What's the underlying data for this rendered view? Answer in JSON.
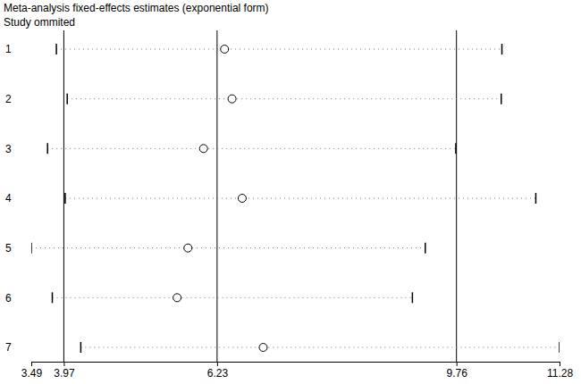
{
  "chart_data": {
    "type": "forest",
    "orientation": "horizontal",
    "title": "Meta-analysis fixed-effects estimates (exponential form)",
    "subtitle": "Study ommited",
    "categories": [
      "1",
      "2",
      "3",
      "4",
      "5",
      "6",
      "7"
    ],
    "values": [
      6.34,
      6.45,
      6.03,
      6.6,
      5.8,
      5.64,
      6.91
    ],
    "ci_lower": [
      3.86,
      4.02,
      3.73,
      3.99,
      3.49,
      3.8,
      4.22
    ],
    "ci_upper": [
      10.43,
      10.42,
      9.75,
      10.93,
      9.3,
      9.11,
      11.28
    ],
    "reference_lines": [
      3.97,
      6.23,
      9.76
    ],
    "xlim": [
      3.49,
      11.28
    ],
    "xticks": [
      3.49,
      3.97,
      6.23,
      9.76,
      11.28
    ],
    "marker": "circle",
    "line_style": "dotted",
    "color": "#000000"
  }
}
